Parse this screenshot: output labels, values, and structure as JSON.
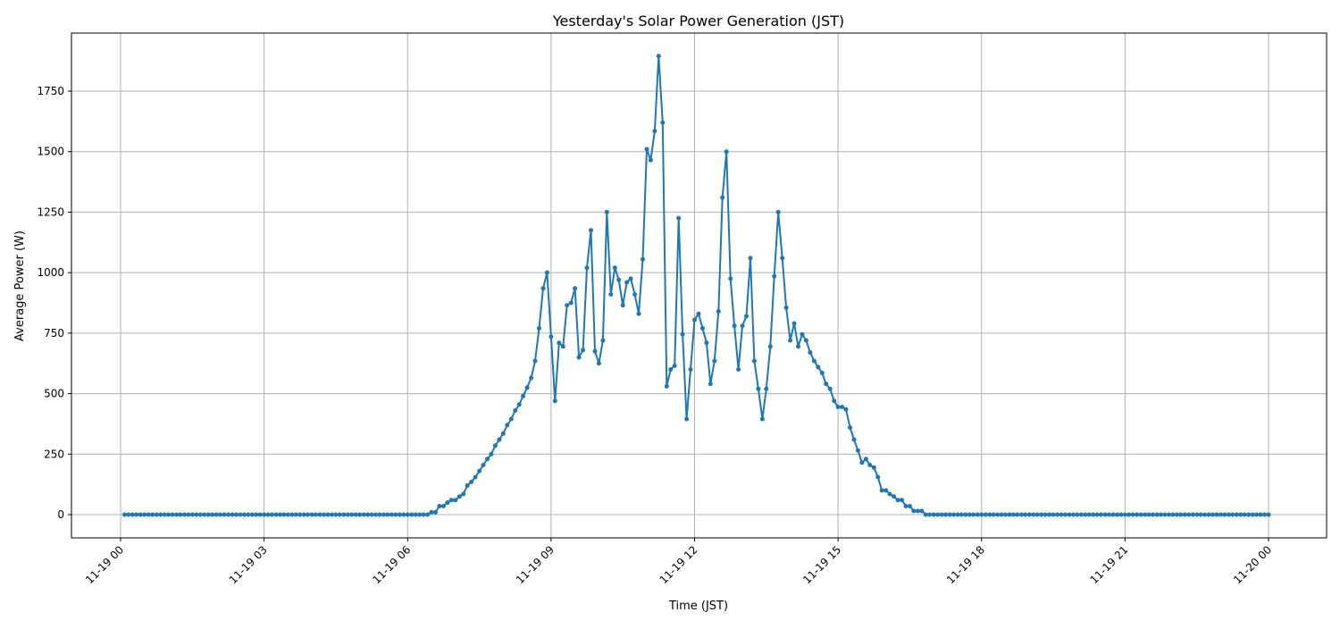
{
  "chart_data": {
    "type": "line",
    "title": "Yesterday's Solar Power Generation (JST)",
    "xlabel": "Time (JST)",
    "ylabel": "Average Power (W)",
    "x_tick_labels": [
      "11-19 00",
      "11-19 03",
      "11-19 06",
      "11-19 09",
      "11-19 12",
      "11-19 15",
      "11-19 18",
      "11-19 21",
      "11-20 00"
    ],
    "y_ticks": [
      0,
      250,
      500,
      750,
      1000,
      1250,
      1500,
      1750
    ],
    "ylim": [
      -96,
      1990
    ],
    "xlim": [
      "11-18 22:58",
      "11-20 01:12"
    ],
    "grid": true,
    "marker": "circle",
    "color": "#1f77b4",
    "x_start": "11-19 00:05",
    "x_interval_minutes": 5,
    "values": [
      0,
      0,
      0,
      0,
      0,
      0,
      0,
      0,
      0,
      0,
      0,
      0,
      0,
      0,
      0,
      0,
      0,
      0,
      0,
      0,
      0,
      0,
      0,
      0,
      0,
      0,
      0,
      0,
      0,
      0,
      0,
      0,
      0,
      0,
      0,
      0,
      0,
      0,
      0,
      0,
      0,
      0,
      0,
      0,
      0,
      0,
      0,
      0,
      0,
      0,
      0,
      0,
      0,
      0,
      0,
      0,
      0,
      0,
      0,
      0,
      0,
      0,
      0,
      0,
      0,
      0,
      0,
      0,
      0,
      0,
      0,
      0,
      0,
      0,
      0,
      0,
      0,
      10,
      10,
      35,
      35,
      50,
      60,
      60,
      75,
      85,
      120,
      135,
      155,
      180,
      205,
      230,
      250,
      285,
      310,
      335,
      370,
      395,
      430,
      455,
      490,
      525,
      565,
      635,
      770,
      935,
      1000,
      735,
      470,
      710,
      695,
      865,
      875,
      935,
      650,
      680,
      1020,
      1175,
      675,
      625,
      720,
      1250,
      910,
      1020,
      970,
      865,
      960,
      975,
      910,
      830,
      1055,
      1510,
      1465,
      1585,
      1895,
      1620,
      530,
      600,
      615,
      1225,
      745,
      395,
      600,
      805,
      830,
      770,
      710,
      540,
      635,
      840,
      1310,
      1500,
      975,
      780,
      600,
      780,
      820,
      1060,
      635,
      520,
      395,
      520,
      695,
      985,
      1250,
      1060,
      855,
      720,
      790,
      695,
      745,
      720,
      670,
      635,
      610,
      585,
      540,
      520,
      470,
      445,
      445,
      435,
      360,
      310,
      265,
      215,
      230,
      205,
      195,
      155,
      100,
      100,
      85,
      75,
      60,
      60,
      35,
      35,
      15,
      15,
      15,
      0,
      0,
      0,
      0,
      0,
      0,
      0,
      0,
      0,
      0,
      0,
      0,
      0,
      0,
      0,
      0,
      0,
      0,
      0,
      0,
      0,
      0,
      0,
      0,
      0,
      0,
      0,
      0,
      0,
      0,
      0,
      0,
      0,
      0,
      0,
      0,
      0,
      0,
      0,
      0,
      0,
      0,
      0,
      0,
      0,
      0,
      0,
      0,
      0,
      0,
      0,
      0,
      0,
      0,
      0,
      0,
      0,
      0,
      0,
      0,
      0,
      0,
      0,
      0,
      0,
      0,
      0,
      0,
      0,
      0,
      0,
      0,
      0,
      0,
      0,
      0,
      0,
      0,
      0,
      0,
      0,
      0,
      0,
      0,
      0,
      0,
      0
    ]
  }
}
